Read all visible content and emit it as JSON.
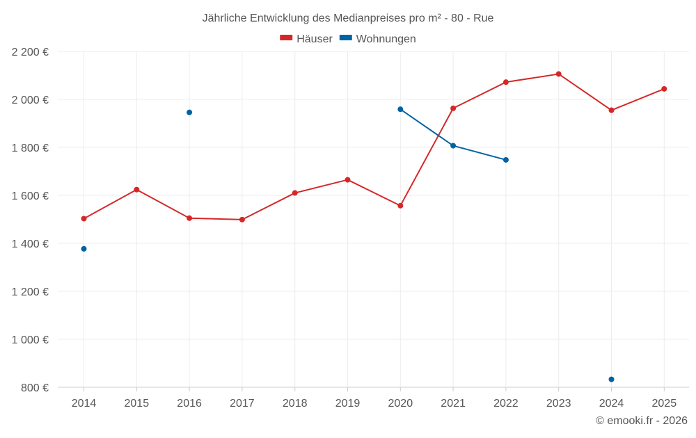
{
  "chart_data": {
    "type": "line",
    "title": "Jährliche Entwicklung des Medianpreises pro m² - 80 - Rue",
    "xlabel": "",
    "ylabel": "",
    "categories": [
      "2014",
      "2015",
      "2016",
      "2017",
      "2018",
      "2019",
      "2020",
      "2021",
      "2022",
      "2023",
      "2024",
      "2025"
    ],
    "ylim": [
      800,
      2200
    ],
    "yticks": [
      800,
      1000,
      1200,
      1400,
      1600,
      1800,
      2000,
      2200
    ],
    "ytick_labels": [
      "800 €",
      "1 000 €",
      "1 200 €",
      "1 400 €",
      "1 600 €",
      "1 800 €",
      "2 000 €",
      "2 200 €"
    ],
    "grid": true,
    "legend_position": "top-center",
    "series": [
      {
        "name": "Häuser",
        "color": "#d62728",
        "values": [
          1503,
          1624,
          1505,
          1499,
          1610,
          1665,
          1557,
          1963,
          2072,
          2106,
          1955,
          2044
        ]
      },
      {
        "name": "Wohnungen",
        "color": "#0063a1",
        "values": [
          1377,
          null,
          1946,
          null,
          null,
          null,
          1959,
          1807,
          1748,
          null,
          833,
          null
        ]
      }
    ],
    "credit": "© emooki.fr - 2026"
  }
}
